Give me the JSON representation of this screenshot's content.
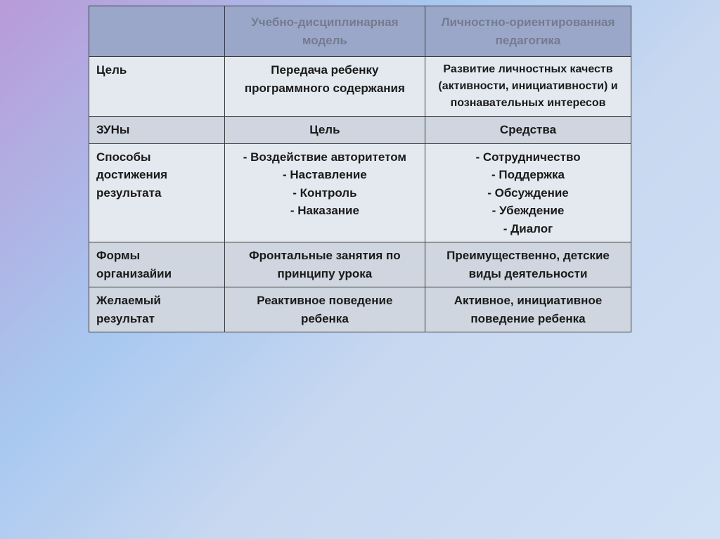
{
  "table": {
    "columns": [
      "",
      "Учебно-дисциплинарная модель",
      "Личностно-ориентированная педагогика"
    ],
    "rows": [
      {
        "label": "Цель",
        "col1": "Передача ребенку программного содержания",
        "col2": "Развитие личностных качеств (активности, инициативности) и познавательных интересов"
      },
      {
        "label": "ЗУНы",
        "col1": "Цель",
        "col2": "Средства"
      },
      {
        "label": "Способы достижения результата",
        "col1": "- Воздействие авторитетом\n- Наставление\n- Контроль\n- Наказание",
        "col2": "- Сотрудничество\n- Поддержка\n- Обсуждение\n- Убеждение\n- Диалог"
      },
      {
        "label": "Формы организайии",
        "col1": "Фронтальные занятия по принципу урока",
        "col2": "Преимущественно, детские виды деятельности"
      },
      {
        "label": "Желаемый результат",
        "col1": "Реактивное поведение ребенка",
        "col2": "Активное, инициативное поведение ребенка"
      }
    ],
    "row_shades": [
      "light",
      "shade",
      "light",
      "shade",
      "shade"
    ]
  },
  "styling": {
    "header_bg": "#9ba7c8",
    "header_text": "#747b8f",
    "cell_text": "#1a1a1a",
    "border_color": "#3a3a3a",
    "shade_bg": "#cfd6df",
    "light_bg": "#e4e9ef",
    "page_bg_gradient": [
      "#b89ad8",
      "#a8c8f0",
      "#c8d8f0",
      "#d0e0f5"
    ]
  }
}
